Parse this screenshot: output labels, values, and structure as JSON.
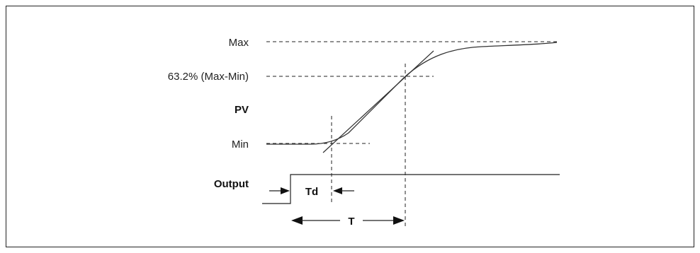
{
  "labels": {
    "max": "Max",
    "percent": "63.2% (Max-Min)",
    "pv": "PV",
    "min": "Min",
    "output": "Output",
    "td": "Td",
    "t": "T"
  }
}
